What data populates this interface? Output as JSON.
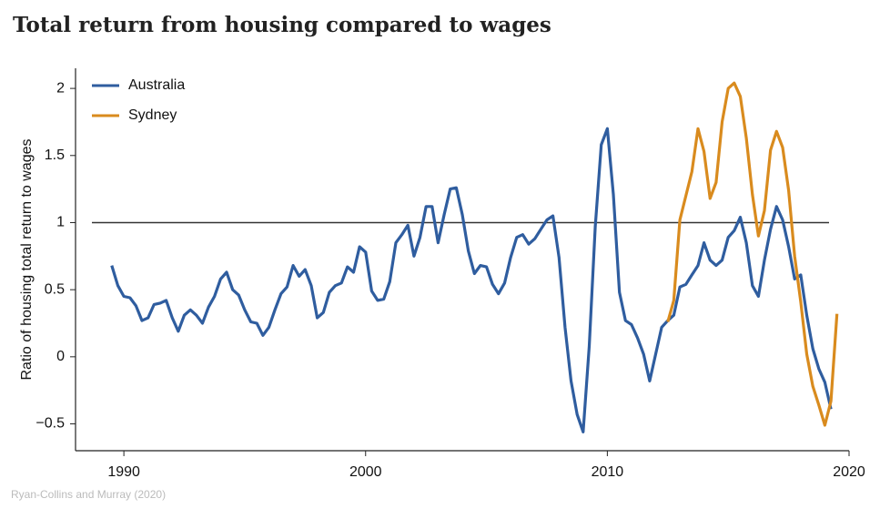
{
  "chart_data": {
    "type": "line",
    "title": "Total return from housing compared to wages",
    "ylabel": "Ratio of housing total return to wages",
    "source": "Ryan-Collins and Murray (2020)",
    "xlim": [
      1988,
      2020
    ],
    "xticks": [
      1990,
      2000,
      2010,
      2020
    ],
    "ylim": [
      -0.7,
      2.15
    ],
    "yticks": [
      {
        "value": -0.5,
        "label": "−0.5"
      },
      0,
      0.5,
      1,
      1.5,
      2
    ],
    "hline": 1,
    "legend": "upper left",
    "x": [
      1989.5,
      1989.75,
      1990,
      1990.25,
      1990.5,
      1990.75,
      1991,
      1991.25,
      1991.5,
      1991.75,
      1992,
      1992.25,
      1992.5,
      1992.75,
      1993,
      1993.25,
      1993.5,
      1993.75,
      1994,
      1994.25,
      1994.5,
      1994.75,
      1995,
      1995.25,
      1995.5,
      1995.75,
      1996,
      1996.25,
      1996.5,
      1996.75,
      1997,
      1997.25,
      1997.5,
      1997.75,
      1998,
      1998.25,
      1998.5,
      1998.75,
      1999,
      1999.25,
      1999.5,
      1999.75,
      2000,
      2000.25,
      2000.5,
      2000.75,
      2001,
      2001.25,
      2001.5,
      2001.75,
      2002,
      2002.25,
      2002.5,
      2002.75,
      2003,
      2003.25,
      2003.5,
      2003.75,
      2004,
      2004.25,
      2004.5,
      2004.75,
      2005,
      2005.25,
      2005.5,
      2005.75,
      2006,
      2006.25,
      2006.5,
      2006.75,
      2007,
      2007.25,
      2007.5,
      2007.75,
      2008,
      2008.25,
      2008.5,
      2008.75,
      2009,
      2009.25,
      2009.5,
      2009.75,
      2010,
      2010.25,
      2010.5,
      2010.75,
      2011,
      2011.25,
      2011.5,
      2011.75,
      2012,
      2012.25,
      2012.5,
      2012.75,
      2013,
      2013.25,
      2013.5,
      2013.75,
      2014,
      2014.25,
      2014.5,
      2014.75,
      2015,
      2015.25,
      2015.5,
      2015.75,
      2016,
      2016.25,
      2016.5,
      2016.75,
      2017,
      2017.25,
      2017.5,
      2017.75,
      2018,
      2018.25,
      2018.5,
      2018.75,
      2019,
      2019.25,
      2019.5
    ],
    "series": [
      {
        "name": "Australia",
        "color": "#2f5d9f",
        "values": [
          0.68,
          0.53,
          0.45,
          0.44,
          0.38,
          0.27,
          0.29,
          0.39,
          0.4,
          0.42,
          0.29,
          0.19,
          0.31,
          0.35,
          0.31,
          0.25,
          0.37,
          0.45,
          0.58,
          0.63,
          0.5,
          0.46,
          0.35,
          0.26,
          0.25,
          0.16,
          0.22,
          0.35,
          0.47,
          0.52,
          0.68,
          0.6,
          0.65,
          0.53,
          0.29,
          0.33,
          0.48,
          0.53,
          0.55,
          0.67,
          0.63,
          0.82,
          0.78,
          0.49,
          0.42,
          0.43,
          0.56,
          0.85,
          0.91,
          0.98,
          0.75,
          0.89,
          1.12,
          1.12,
          0.85,
          1.06,
          1.25,
          1.26,
          1.06,
          0.79,
          0.62,
          0.68,
          0.67,
          0.54,
          0.47,
          0.55,
          0.74,
          0.89,
          0.91,
          0.84,
          0.88,
          0.95,
          1.02,
          1.05,
          0.74,
          0.22,
          -0.18,
          -0.43,
          -0.56,
          0.08,
          0.97,
          1.58,
          1.7,
          1.21,
          0.48,
          0.27,
          0.24,
          0.14,
          0.02,
          -0.18,
          0.02,
          0.22,
          0.27,
          0.31,
          0.52,
          0.54,
          0.61,
          0.68,
          0.85,
          0.72,
          0.68,
          0.72,
          0.89,
          0.94,
          1.04,
          0.85,
          0.53,
          0.45,
          0.72,
          0.95,
          1.12,
          1.02,
          0.82,
          0.58,
          0.61,
          0.31,
          0.06,
          -0.09,
          -0.19,
          -0.39,
          null
        ]
      },
      {
        "name": "Sydney",
        "color": "#d98b1e",
        "values": [
          null,
          null,
          null,
          null,
          null,
          null,
          null,
          null,
          null,
          null,
          null,
          null,
          null,
          null,
          null,
          null,
          null,
          null,
          null,
          null,
          null,
          null,
          null,
          null,
          null,
          null,
          null,
          null,
          null,
          null,
          null,
          null,
          null,
          null,
          null,
          null,
          null,
          null,
          null,
          null,
          null,
          null,
          null,
          null,
          null,
          null,
          null,
          null,
          null,
          null,
          null,
          null,
          null,
          null,
          null,
          null,
          null,
          null,
          null,
          null,
          null,
          null,
          null,
          null,
          null,
          null,
          null,
          null,
          null,
          null,
          null,
          null,
          null,
          null,
          null,
          null,
          null,
          null,
          null,
          null,
          null,
          null,
          null,
          null,
          null,
          null,
          null,
          null,
          null,
          null,
          null,
          null,
          0.26,
          0.42,
          1.02,
          1.2,
          1.38,
          1.7,
          1.53,
          1.18,
          1.3,
          1.75,
          2.0,
          2.04,
          1.94,
          1.63,
          1.21,
          0.9,
          1.09,
          1.54,
          1.68,
          1.56,
          1.24,
          0.75,
          0.41,
          0.02,
          -0.22,
          -0.36,
          -0.51,
          -0.33,
          0.32
        ]
      }
    ]
  }
}
